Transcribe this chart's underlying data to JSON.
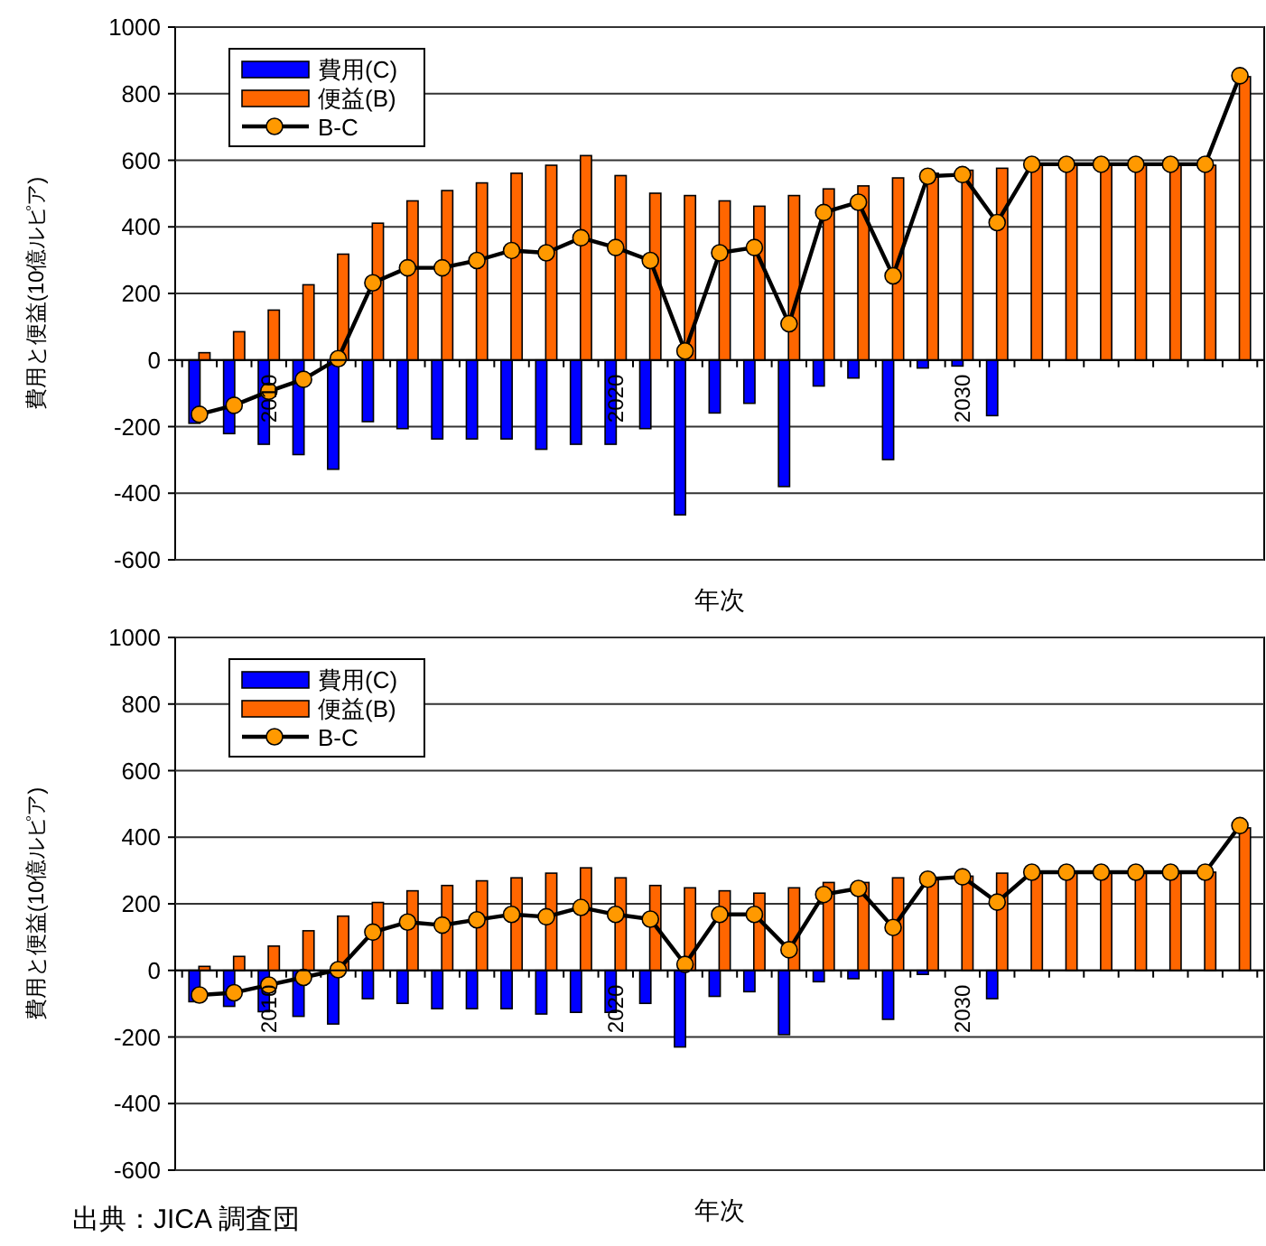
{
  "chart_data": [
    {
      "type": "bar",
      "xlabel": "年次",
      "ylabel": "費用と便益(10億ルピア)",
      "categories": [
        null,
        null,
        "2010",
        null,
        null,
        null,
        null,
        null,
        null,
        null,
        null,
        null,
        "2020",
        null,
        null,
        null,
        null,
        null,
        null,
        null,
        null,
        null,
        "2030",
        null,
        null,
        null,
        null,
        null,
        null,
        null,
        null
      ],
      "series": [
        {
          "name": "費用(C)",
          "color": "#0000ff",
          "values": [
            -190,
            -221,
            -253,
            -284,
            -328,
            -185,
            -206,
            -237,
            -237,
            -237,
            -268,
            -253,
            -253,
            -206,
            -465,
            -159,
            -130,
            -380,
            -78,
            -54,
            -299,
            -24,
            -18,
            -167,
            null,
            null,
            null,
            null,
            null,
            null,
            null
          ]
        },
        {
          "name": "便益(B)",
          "color": "#ff6600",
          "values": [
            22,
            85,
            150,
            226,
            318,
            411,
            478,
            509,
            532,
            561,
            585,
            614,
            554,
            501,
            494,
            478,
            462,
            494,
            514,
            523,
            547,
            561,
            570,
            576,
            585,
            585,
            585,
            585,
            585,
            585,
            851
          ]
        },
        {
          "name": "B-C",
          "type": "line",
          "color": "#000000",
          "marker": "circle",
          "values": [
            -163,
            -136,
            -94,
            -58,
            4,
            232,
            277,
            277,
            299,
            329,
            322,
            367,
            338,
            299,
            27,
            322,
            338,
            109,
            443,
            474,
            253,
            552,
            557,
            413,
            588,
            588,
            588,
            588,
            588,
            588,
            854
          ]
        }
      ],
      "ylim": [
        -600,
        1000
      ],
      "yticks": [
        -600,
        -400,
        -200,
        0,
        200,
        400,
        600,
        800,
        1000
      ],
      "grid": "y",
      "legend": "top left"
    },
    {
      "type": "bar",
      "xlabel": "年次",
      "ylabel": "費用と便益(10億ルピア)",
      "categories": [
        null,
        null,
        "2010",
        null,
        null,
        null,
        null,
        null,
        null,
        null,
        null,
        null,
        "2020",
        null,
        null,
        null,
        null,
        null,
        null,
        null,
        null,
        null,
        "2030",
        null,
        null,
        null,
        null,
        null,
        null,
        null,
        null
      ],
      "series": [
        {
          "name": "費用(C)",
          "color": "#0000ff",
          "values": [
            -94,
            -108,
            -124,
            -138,
            -161,
            -85,
            -99,
            -115,
            -115,
            -115,
            -131,
            -126,
            -126,
            -99,
            -230,
            -78,
            -64,
            -193,
            -34,
            -25,
            -147,
            -12,
            null,
            -85,
            null,
            null,
            null,
            null,
            null,
            null,
            null
          ]
        },
        {
          "name": "便益(B)",
          "color": "#ff6600",
          "values": [
            12,
            42,
            73,
            119,
            163,
            204,
            239,
            255,
            269,
            278,
            292,
            308,
            278,
            255,
            248,
            239,
            232,
            248,
            264,
            264,
            278,
            273,
            283,
            292,
            295,
            295,
            295,
            295,
            295,
            295,
            428
          ]
        },
        {
          "name": "B-C",
          "type": "line",
          "color": "#000000",
          "marker": "circle",
          "values": [
            -74,
            -67,
            -44,
            -21,
            2,
            115,
            145,
            136,
            152,
            168,
            161,
            189,
            168,
            154,
            18,
            168,
            168,
            62,
            228,
            246,
            129,
            274,
            281,
            205,
            295,
            295,
            295,
            295,
            295,
            295,
            435
          ]
        }
      ],
      "ylim": [
        -600,
        1000
      ],
      "yticks": [
        -600,
        -400,
        -200,
        0,
        200,
        400,
        600,
        800,
        1000
      ],
      "grid": "y",
      "legend": "top left",
      "annotations": [
        "出典：JICA 調査団"
      ]
    }
  ]
}
